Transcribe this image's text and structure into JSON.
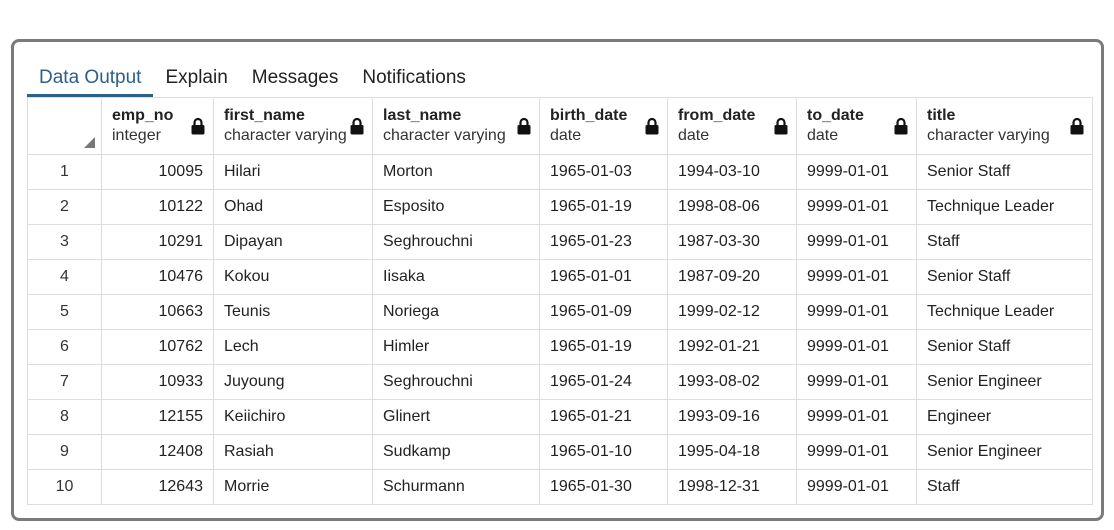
{
  "tabs": [
    {
      "label": "Data Output",
      "active": true
    },
    {
      "label": "Explain",
      "active": false
    },
    {
      "label": "Messages",
      "active": false
    },
    {
      "label": "Notifications",
      "active": false
    }
  ],
  "columns": [
    {
      "name": "emp_no",
      "type": "integer",
      "locked": true
    },
    {
      "name": "first_name",
      "type": "character varying",
      "locked": true
    },
    {
      "name": "last_name",
      "type": "character varying",
      "locked": true
    },
    {
      "name": "birth_date",
      "type": "date",
      "locked": true
    },
    {
      "name": "from_date",
      "type": "date",
      "locked": true
    },
    {
      "name": "to_date",
      "type": "date",
      "locked": true
    },
    {
      "name": "title",
      "type": "character varying",
      "locked": true
    }
  ],
  "rows": [
    {
      "num": "1",
      "cells": [
        "10095",
        "Hilari",
        "Morton",
        "1965-01-03",
        "1994-03-10",
        "9999-01-01",
        "Senior Staff"
      ]
    },
    {
      "num": "2",
      "cells": [
        "10122",
        "Ohad",
        "Esposito",
        "1965-01-19",
        "1998-08-06",
        "9999-01-01",
        "Technique Leader"
      ]
    },
    {
      "num": "3",
      "cells": [
        "10291",
        "Dipayan",
        "Seghrouchni",
        "1965-01-23",
        "1987-03-30",
        "9999-01-01",
        "Staff"
      ]
    },
    {
      "num": "4",
      "cells": [
        "10476",
        "Kokou",
        "Iisaka",
        "1965-01-01",
        "1987-09-20",
        "9999-01-01",
        "Senior Staff"
      ]
    },
    {
      "num": "5",
      "cells": [
        "10663",
        "Teunis",
        "Noriega",
        "1965-01-09",
        "1999-02-12",
        "9999-01-01",
        "Technique Leader"
      ]
    },
    {
      "num": "6",
      "cells": [
        "10762",
        "Lech",
        "Himler",
        "1965-01-19",
        "1992-01-21",
        "9999-01-01",
        "Senior Staff"
      ]
    },
    {
      "num": "7",
      "cells": [
        "10933",
        "Juyoung",
        "Seghrouchni",
        "1965-01-24",
        "1993-08-02",
        "9999-01-01",
        "Senior Engineer"
      ]
    },
    {
      "num": "8",
      "cells": [
        "12155",
        "Keiichiro",
        "Glinert",
        "1965-01-21",
        "1993-09-16",
        "9999-01-01",
        "Engineer"
      ]
    },
    {
      "num": "9",
      "cells": [
        "12408",
        "Rasiah",
        "Sudkamp",
        "1965-01-10",
        "1995-04-18",
        "9999-01-01",
        "Senior Engineer"
      ]
    },
    {
      "num": "10",
      "cells": [
        "12643",
        "Morrie",
        "Schurmann",
        "1965-01-30",
        "1998-12-31",
        "9999-01-01",
        "Staff"
      ]
    }
  ],
  "colors": {
    "active_tab": "#2c5f8a",
    "frame_border": "#7a7a7a",
    "grid_line": "#dedede"
  }
}
